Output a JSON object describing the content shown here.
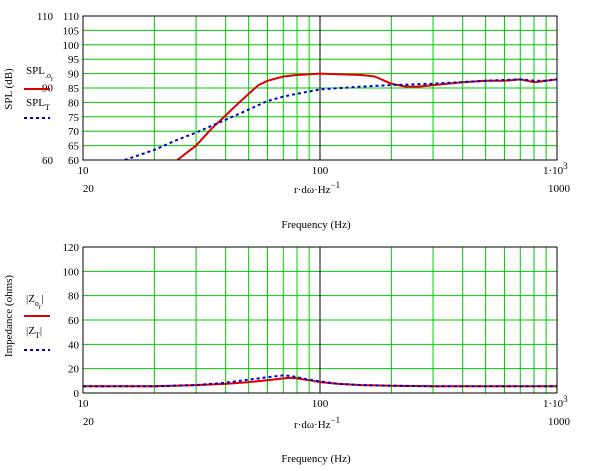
{
  "chart_data": [
    {
      "type": "line",
      "xscale": "log",
      "xlim": [
        10,
        1000
      ],
      "ylim": [
        60,
        110
      ],
      "grid": true,
      "x_tick_labels_upper": [
        "10",
        "100",
        "1·10"
      ],
      "x_tick_labels_lower": [
        "20",
        "1000"
      ],
      "x_tick_superscript": "3",
      "y_tick_labels_right": [
        "110",
        "105",
        "100",
        "95",
        "90",
        "85",
        "80",
        "75",
        "70",
        "65",
        "60"
      ],
      "y_tick_labels_left": [
        "110",
        "90",
        "60"
      ],
      "y_tick_values_right": [
        110,
        105,
        100,
        95,
        90,
        85,
        80,
        75,
        70,
        65,
        60
      ],
      "y_tick_values_left": [
        110,
        90,
        60
      ],
      "xlabel_expression": "r·dω·Hz",
      "xlabel_exponent": "−1",
      "xlabel": "Frequency (Hz)",
      "ylabel": "SPL (dB)",
      "series": [
        {
          "name": "SPL",
          "name_sub": "o",
          "name_sub_sub": "r",
          "color": "#dd0000",
          "style": "solid",
          "x": [
            25,
            30,
            35,
            40,
            45,
            50,
            55,
            60,
            70,
            80,
            90,
            100,
            120,
            150,
            170,
            200,
            230,
            260,
            300,
            400,
            500,
            600,
            700,
            800,
            900,
            1000
          ],
          "y": [
            60,
            65,
            71,
            75.5,
            79.5,
            83,
            86,
            87.5,
            89,
            89.5,
            89.8,
            90,
            89.8,
            89.5,
            89,
            86.5,
            85.5,
            85.5,
            86,
            87,
            87.5,
            87.5,
            88,
            87,
            87.5,
            88
          ]
        },
        {
          "name": "SPL",
          "name_sub": "T",
          "color": "#0000cc",
          "style": "dotted",
          "x": [
            15,
            20,
            25,
            30,
            40,
            50,
            60,
            70,
            80,
            100,
            150,
            200,
            300,
            500,
            700,
            800,
            900,
            1000
          ],
          "y": [
            60,
            63.5,
            67,
            69.5,
            74,
            77.5,
            80.5,
            82,
            83,
            84.5,
            85.5,
            86,
            86.5,
            87.5,
            88,
            87.5,
            87.5,
            88
          ]
        }
      ]
    },
    {
      "type": "line",
      "xscale": "log",
      "xlim": [
        10,
        1000
      ],
      "ylim": [
        0,
        120
      ],
      "grid": true,
      "x_tick_labels_upper": [
        "10",
        "100",
        "1·10"
      ],
      "x_tick_labels_lower": [
        "20",
        "1000"
      ],
      "x_tick_superscript": "3",
      "y_tick_labels": [
        "120",
        "100",
        "80",
        "60",
        "40",
        "20",
        "0"
      ],
      "y_tick_values": [
        120,
        100,
        80,
        60,
        40,
        20,
        0
      ],
      "xlabel_expression": "r·dω·Hz",
      "xlabel_exponent": "−1",
      "xlabel": "Frequency (Hz)",
      "ylabel": "Impedance (ohms)",
      "series": [
        {
          "name": "|Z",
          "name_sub": "o",
          "name_sub_sub": "r",
          "name_close": "|",
          "color": "#dd0000",
          "style": "solid",
          "x": [
            10,
            20,
            30,
            40,
            50,
            60,
            70,
            75,
            80,
            90,
            100,
            120,
            150,
            200,
            300,
            500,
            1000
          ],
          "y": [
            5.5,
            5.5,
            6.5,
            7.5,
            9,
            10.5,
            12,
            12.5,
            12,
            10.5,
            9,
            7.5,
            6.5,
            6,
            5.5,
            5.5,
            5.5
          ]
        },
        {
          "name": "|Z",
          "name_sub": "T",
          "name_close": "|",
          "color": "#0000cc",
          "style": "dotted",
          "x": [
            10,
            20,
            30,
            40,
            50,
            60,
            70,
            75,
            80,
            90,
            100,
            120,
            150,
            200,
            300,
            500,
            1000
          ],
          "y": [
            5.5,
            5.5,
            6.5,
            8.5,
            11,
            13,
            14.5,
            14,
            13,
            11,
            9.5,
            7.5,
            6.5,
            6,
            5.5,
            5.5,
            5.5
          ]
        }
      ]
    }
  ]
}
